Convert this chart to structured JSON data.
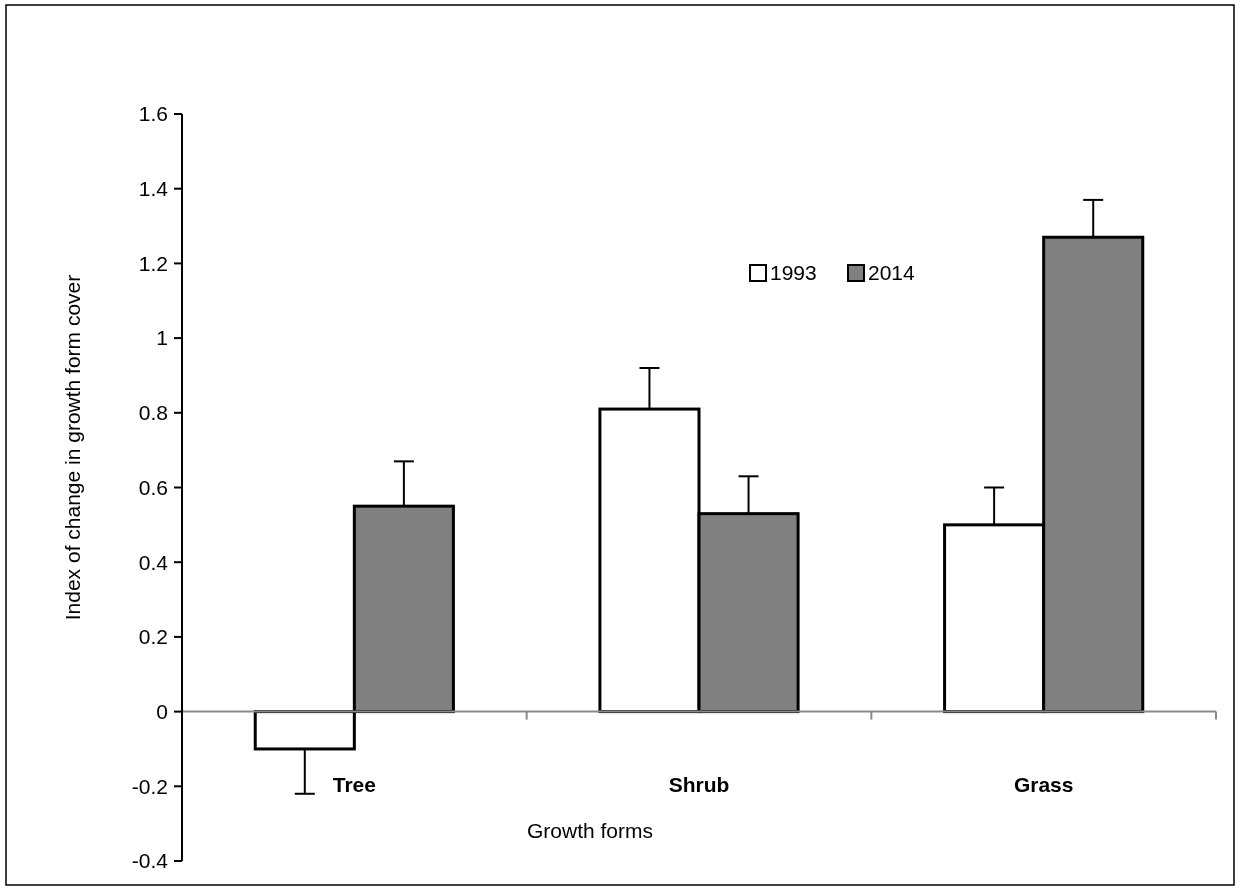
{
  "chart_data": {
    "type": "bar",
    "xlabel": "Growth forms",
    "ylabel": "Index of change in growth form cover",
    "categories": [
      "Tree",
      "Shrub",
      "Grass"
    ],
    "series": [
      {
        "name": "1993",
        "color": "#ffffff",
        "values": [
          -0.1,
          0.81,
          0.5
        ],
        "errors": [
          [
            -0.22,
            -0.1
          ],
          [
            0.81,
            0.92
          ],
          [
            0.5,
            0.6
          ]
        ]
      },
      {
        "name": "2014",
        "color": "#808080",
        "values": [
          0.55,
          0.53,
          1.27
        ],
        "errors": [
          [
            0.55,
            0.67
          ],
          [
            0.53,
            0.63
          ],
          [
            1.27,
            1.37
          ]
        ]
      }
    ],
    "ylim": [
      -0.4,
      1.6
    ],
    "yticks": [
      -0.4,
      -0.2,
      0,
      0.2,
      0.4,
      0.6,
      0.8,
      1,
      1.2,
      1.4,
      1.6
    ],
    "legend": "top right"
  }
}
